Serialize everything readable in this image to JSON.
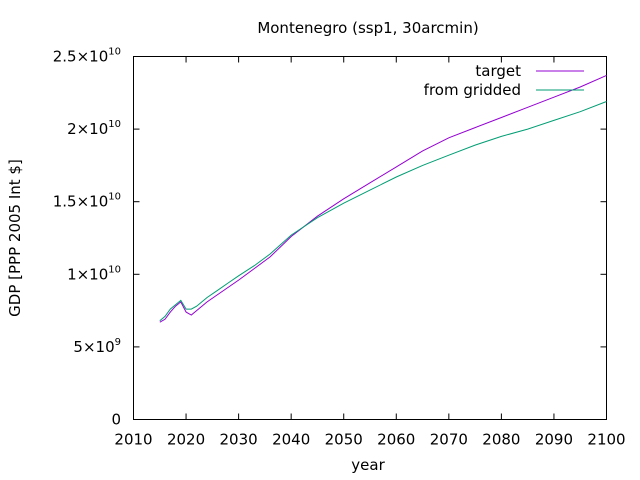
{
  "chart_data": {
    "type": "line",
    "title": "Montenegro (ssp1, 30arcmin)",
    "xlabel": "year",
    "ylabel": "GDP [PPP 2005 Int $]",
    "xlim": [
      2010,
      2100
    ],
    "ylim": [
      0,
      25000000000
    ],
    "xticks": [
      {
        "value": 2010,
        "label": "2010"
      },
      {
        "value": 2020,
        "label": "2020"
      },
      {
        "value": 2030,
        "label": "2030"
      },
      {
        "value": 2040,
        "label": "2040"
      },
      {
        "value": 2050,
        "label": "2050"
      },
      {
        "value": 2060,
        "label": "2060"
      },
      {
        "value": 2070,
        "label": "2070"
      },
      {
        "value": 2080,
        "label": "2080"
      },
      {
        "value": 2090,
        "label": "2090"
      },
      {
        "value": 2100,
        "label": "2100"
      }
    ],
    "yticks": [
      {
        "value": 0,
        "base": "0",
        "exp": ""
      },
      {
        "value": 5000000000,
        "base": "5×10",
        "exp": "9"
      },
      {
        "value": 10000000000,
        "base": "1×10",
        "exp": "10"
      },
      {
        "value": 15000000000,
        "base": "1.5×10",
        "exp": "10"
      },
      {
        "value": 20000000000,
        "base": "2×10",
        "exp": "10"
      },
      {
        "value": 25000000000,
        "base": "2.5×10",
        "exp": "10"
      }
    ],
    "grid": false,
    "legend_position": "top-right",
    "series": [
      {
        "name": "target",
        "color": "#9400d3",
        "x": [
          2015,
          2016,
          2017,
          2018,
          2019,
          2020,
          2021,
          2022,
          2024,
          2026,
          2028,
          2030,
          2033,
          2036,
          2040,
          2045,
          2050,
          2055,
          2060,
          2065,
          2070,
          2075,
          2080,
          2085,
          2090,
          2095,
          2100
        ],
        "y": [
          6700000000,
          6900000000,
          7400000000,
          7800000000,
          8100000000,
          7400000000,
          7200000000,
          7500000000,
          8100000000,
          8600000000,
          9100000000,
          9600000000,
          10400000000,
          11200000000,
          12600000000,
          14000000000,
          15200000000,
          16300000000,
          17400000000,
          18500000000,
          19400000000,
          20100000000,
          20800000000,
          21500000000,
          22200000000,
          22900000000,
          23700000000
        ]
      },
      {
        "name": "from gridded",
        "color": "#009e73",
        "x": [
          2015,
          2016,
          2017,
          2018,
          2019,
          2020,
          2021,
          2022,
          2024,
          2026,
          2028,
          2030,
          2033,
          2036,
          2040,
          2045,
          2050,
          2055,
          2060,
          2065,
          2070,
          2075,
          2080,
          2085,
          2090,
          2095,
          2100
        ],
        "y": [
          6800000000,
          7100000000,
          7600000000,
          7900000000,
          8200000000,
          7600000000,
          7600000000,
          7800000000,
          8400000000,
          8900000000,
          9400000000,
          9900000000,
          10600000000,
          11400000000,
          12700000000,
          13900000000,
          14900000000,
          15800000000,
          16700000000,
          17500000000,
          18200000000,
          18900000000,
          19500000000,
          20000000000,
          20600000000,
          21200000000,
          21900000000
        ]
      }
    ]
  }
}
